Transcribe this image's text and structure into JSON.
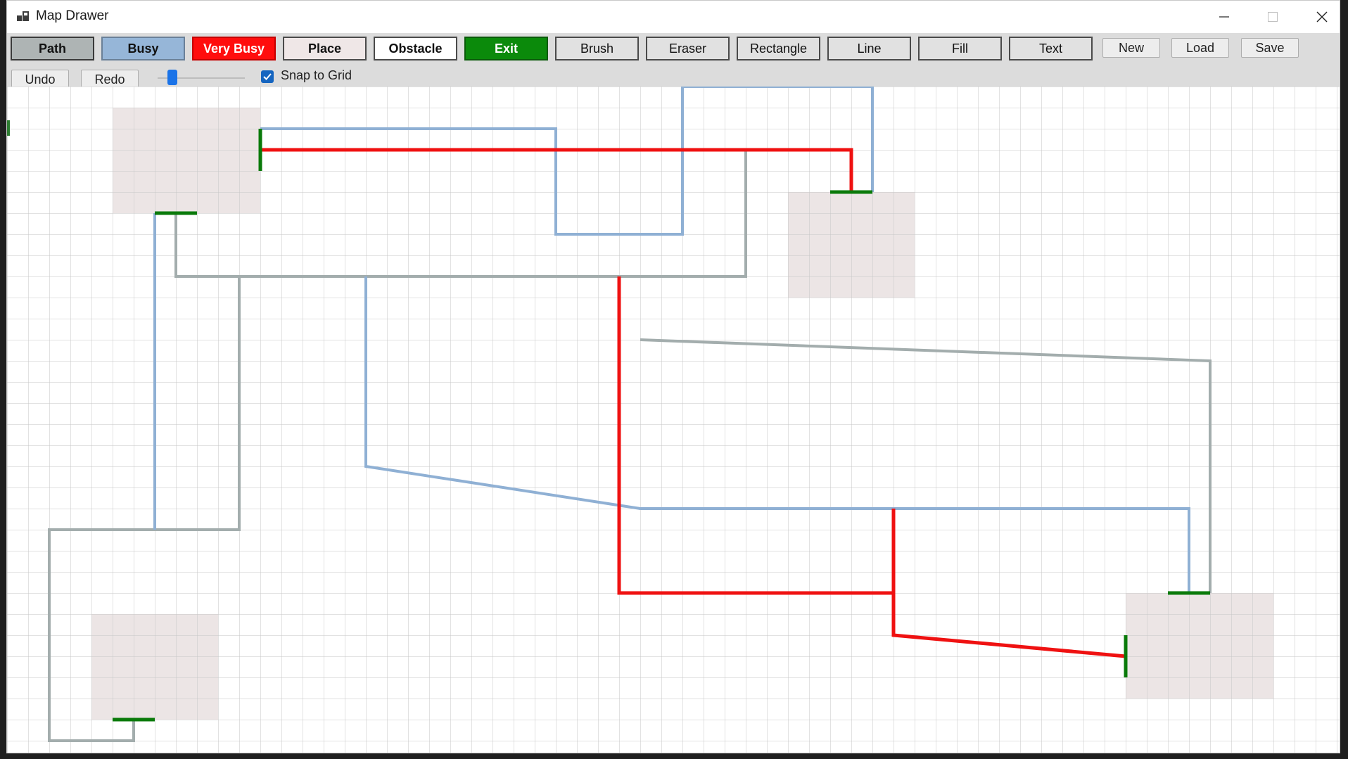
{
  "window": {
    "title": "Map Drawer"
  },
  "toolbar": {
    "tools": [
      {
        "label": "Path",
        "name": "tool-path"
      },
      {
        "label": "Busy",
        "name": "tool-busy"
      },
      {
        "label": "Very Busy",
        "name": "tool-very-busy"
      },
      {
        "label": "Place",
        "name": "tool-place"
      },
      {
        "label": "Obstacle",
        "name": "tool-obstacle"
      },
      {
        "label": "Exit",
        "name": "tool-exit"
      },
      {
        "label": "Brush",
        "name": "tool-brush"
      },
      {
        "label": "Eraser",
        "name": "tool-eraser"
      },
      {
        "label": "Rectangle",
        "name": "tool-rectangle"
      },
      {
        "label": "Line",
        "name": "tool-line"
      },
      {
        "label": "Fill",
        "name": "tool-fill"
      },
      {
        "label": "Text",
        "name": "tool-text"
      }
    ],
    "file_buttons": {
      "new": "New",
      "load": "Load",
      "save": "Save"
    },
    "undo": "Undo",
    "redo": "Redo",
    "snap_label": "Snap to Grid",
    "snap_checked": true,
    "brush_size_fraction": 0.17
  },
  "colors": {
    "path": "#a3adad",
    "busy": "#8fb0d4",
    "very_busy": "#ef1111",
    "exit": "#0a7a0a",
    "place": "#ece5e5",
    "grid": "#c8c8c8"
  }
}
